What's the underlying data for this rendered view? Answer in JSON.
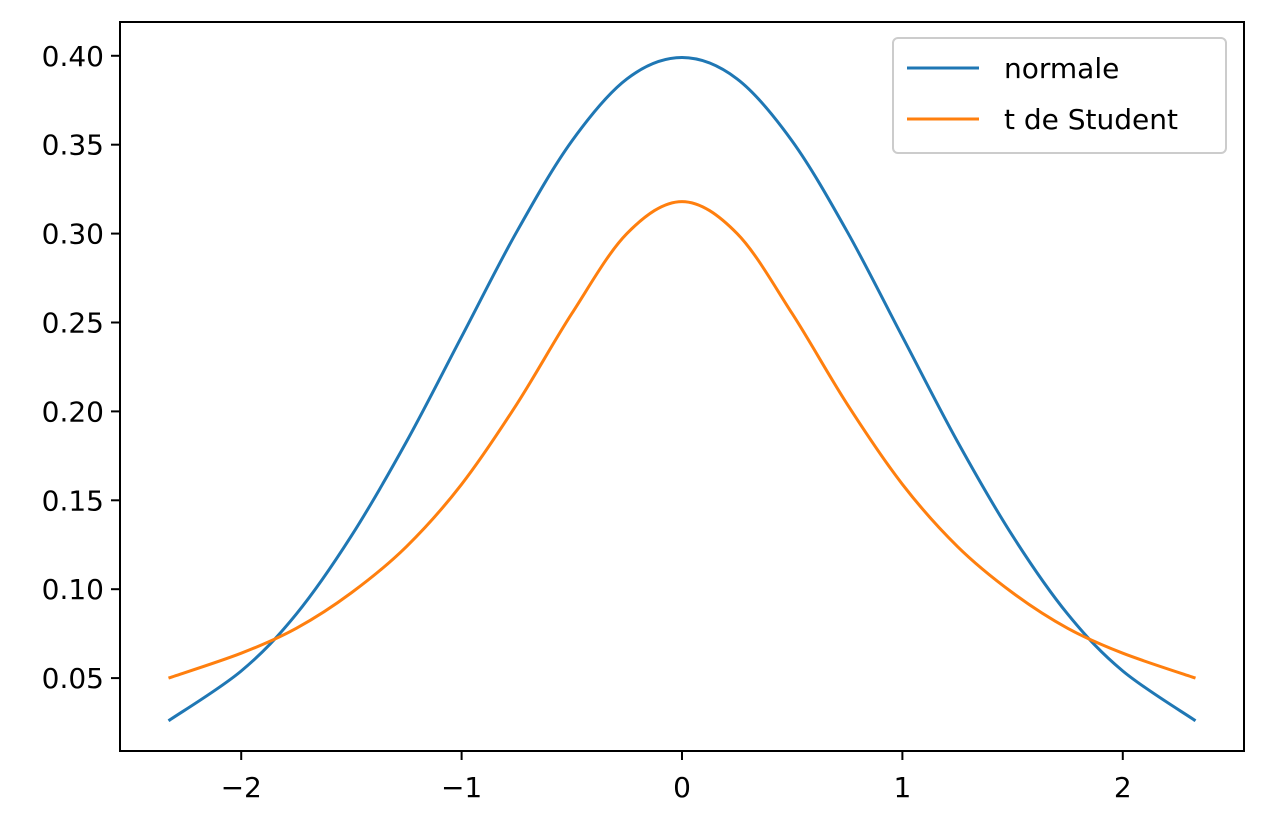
{
  "chart_data": {
    "type": "line",
    "title": "",
    "xlabel": "",
    "ylabel": "",
    "xlim": [
      -2.55,
      2.55
    ],
    "ylim": [
      0.009,
      0.419
    ],
    "grid": false,
    "legend": {
      "placement": "top-right"
    },
    "x_ticks": [
      {
        "value": -2,
        "label": "−2"
      },
      {
        "value": -1,
        "label": "−1"
      },
      {
        "value": 0,
        "label": "0"
      },
      {
        "value": 1,
        "label": "1"
      },
      {
        "value": 2,
        "label": "2"
      }
    ],
    "y_ticks": [
      {
        "value": 0.05,
        "label": "0.05"
      },
      {
        "value": 0.1,
        "label": "0.10"
      },
      {
        "value": 0.15,
        "label": "0.15"
      },
      {
        "value": 0.2,
        "label": "0.20"
      },
      {
        "value": 0.25,
        "label": "0.25"
      },
      {
        "value": 0.3,
        "label": "0.30"
      },
      {
        "value": 0.35,
        "label": "0.35"
      },
      {
        "value": 0.4,
        "label": "0.40"
      }
    ],
    "x": [
      -2.33,
      -2.0,
      -1.75,
      -1.5,
      -1.25,
      -1.0,
      -0.75,
      -0.5,
      -0.25,
      0.0,
      0.25,
      0.5,
      0.75,
      1.0,
      1.25,
      1.5,
      1.75,
      2.0,
      2.33
    ],
    "series": [
      {
        "name": "normale",
        "color": "#1f77b4",
        "values": [
          0.026,
          0.054,
          0.086,
          0.13,
          0.183,
          0.242,
          0.301,
          0.352,
          0.387,
          0.399,
          0.387,
          0.352,
          0.301,
          0.242,
          0.183,
          0.13,
          0.086,
          0.054,
          0.026
        ]
      },
      {
        "name": "t de Student",
        "color": "#ff7f0e",
        "values": [
          0.05,
          0.064,
          0.078,
          0.098,
          0.124,
          0.159,
          0.204,
          0.255,
          0.3,
          0.318,
          0.3,
          0.255,
          0.204,
          0.159,
          0.124,
          0.098,
          0.078,
          0.064,
          0.05
        ]
      }
    ]
  }
}
